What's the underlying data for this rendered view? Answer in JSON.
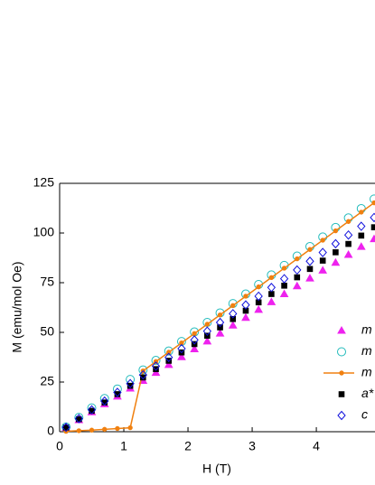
{
  "chart_data": {
    "type": "scatter",
    "xlabel": "H (T)",
    "ylabel": "M (emu/mol Oe)",
    "xlim": [
      0,
      4.9
    ],
    "xticks": [
      0,
      1,
      2,
      3,
      4
    ],
    "ylim": [
      0,
      125
    ],
    "yticks": [
      0,
      25,
      50,
      75,
      100,
      125
    ],
    "x": [
      0.1,
      0.3,
      0.5,
      0.7,
      0.9,
      1.1,
      1.3,
      1.5,
      1.7,
      1.9,
      2.1,
      2.3,
      2.5,
      2.7,
      2.9,
      3.1,
      3.3,
      3.5,
      3.7,
      3.9,
      4.1,
      4.3,
      4.5,
      4.7,
      4.9
    ],
    "series": [
      {
        "name": "m",
        "color": "#ee22ee",
        "marker": "triangle",
        "filled": true,
        "line": false,
        "values": [
          2.0,
          5.9,
          9.9,
          13.9,
          17.8,
          21.8,
          25.7,
          29.7,
          33.7,
          37.6,
          41.6,
          45.5,
          49.5,
          53.5,
          57.4,
          61.4,
          65.3,
          69.3,
          73.3,
          77.2,
          81.2,
          85.1,
          89.1,
          93.1,
          97.0
        ]
      },
      {
        "name": "m",
        "color": "#22bbbb",
        "marker": "circle",
        "filled": false,
        "line": false,
        "values": [
          2.4,
          7.2,
          12.0,
          16.7,
          21.5,
          26.3,
          31.1,
          35.9,
          40.6,
          45.4,
          50.2,
          55.0,
          59.8,
          64.5,
          69.3,
          74.1,
          78.9,
          83.7,
          88.4,
          93.2,
          98.0,
          102.8,
          107.6,
          112.3,
          117.1
        ]
      },
      {
        "name": "m",
        "color": "#f08010",
        "marker": "dot",
        "filled": true,
        "line": true,
        "values": [
          0.2,
          0.5,
          0.8,
          1.2,
          1.6,
          2.0,
          30.6,
          35.3,
          40.0,
          44.7,
          49.4,
          54.1,
          58.8,
          63.5,
          68.2,
          72.9,
          77.6,
          82.3,
          87.0,
          91.7,
          96.4,
          101.1,
          105.8,
          110.5,
          115.2
        ]
      },
      {
        "name": "a*",
        "color": "#000000",
        "marker": "square",
        "filled": true,
        "line": false,
        "values": [
          2.1,
          6.3,
          10.5,
          14.7,
          18.9,
          23.1,
          27.3,
          31.5,
          35.7,
          39.9,
          44.1,
          48.3,
          52.5,
          56.7,
          60.9,
          65.1,
          69.3,
          73.5,
          77.7,
          81.9,
          86.1,
          90.3,
          94.5,
          98.7,
          102.9
        ]
      },
      {
        "name": "c",
        "color": "#1010dd",
        "marker": "diamond",
        "filled": false,
        "line": false,
        "values": [
          2.2,
          6.6,
          11.0,
          15.4,
          19.8,
          24.2,
          28.6,
          33.0,
          37.4,
          41.8,
          46.2,
          50.6,
          55.0,
          59.4,
          63.8,
          68.2,
          72.6,
          77.0,
          81.4,
          85.8,
          90.2,
          94.6,
          99.0,
          103.4,
          107.8
        ]
      }
    ]
  }
}
